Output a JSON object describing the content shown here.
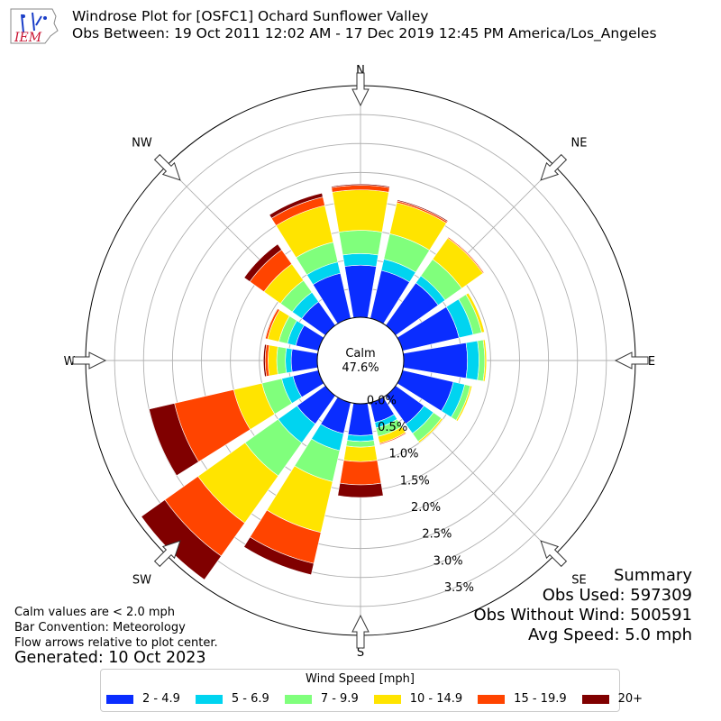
{
  "header": {
    "logo_text": "IEM",
    "title_line1": "Windrose Plot for [OSFC1] Ochard Sunflower Valley",
    "title_line2": "Obs Between: 19 Oct 2011 12:02 AM - 17 Dec 2019 12:45 PM America/Los_Angeles"
  },
  "chart_data": {
    "type": "windrose",
    "directions": [
      "N",
      "NNE",
      "NE",
      "ENE",
      "E",
      "ESE",
      "SE",
      "SSE",
      "S",
      "SSW",
      "SW",
      "WSW",
      "W",
      "WNW",
      "NW",
      "NNW"
    ],
    "direction_labels": [
      "N",
      "NE",
      "E",
      "SE",
      "S",
      "SW",
      "W",
      "NW"
    ],
    "radial_ticks": [
      0.0,
      0.5,
      1.0,
      1.5,
      2.0,
      2.5,
      3.0,
      3.5
    ],
    "radial_tick_labels": [
      "0.0%",
      "0.5%",
      "1.0%",
      "1.5%",
      "2.0%",
      "2.5%",
      "3.0%",
      "3.5%"
    ],
    "rmax": 4.0,
    "calm_label": "Calm",
    "calm_value": "47.6%",
    "bins": [
      "2 - 4.9",
      "5 - 6.9",
      "7 - 9.9",
      "10 - 14.9",
      "15 - 19.9",
      "20+"
    ],
    "colors": [
      "#0a2dff",
      "#00d4f0",
      "#80ff7c",
      "#ffe400",
      "#ff4400",
      "#800000"
    ],
    "series_values_cumulative_percent": [
      [
        0.9,
        1.1,
        1.5,
        2.2,
        2.28,
        2.3
      ],
      [
        0.85,
        1.05,
        1.5,
        2.05,
        2.08,
        2.1
      ],
      [
        0.9,
        1.05,
        1.4,
        1.85,
        1.87,
        1.88
      ],
      [
        1.0,
        1.25,
        1.4,
        1.45,
        1.45,
        1.45
      ],
      [
        1.1,
        1.3,
        1.4,
        1.43,
        1.43,
        1.43
      ],
      [
        0.9,
        1.1,
        1.2,
        1.23,
        1.23,
        1.23
      ],
      [
        0.6,
        0.8,
        0.97,
        1.0,
        1.0,
        1.0
      ],
      [
        0.35,
        0.45,
        0.6,
        0.72,
        0.74,
        0.75
      ],
      [
        0.55,
        0.65,
        0.75,
        1.0,
        1.4,
        1.62
      ],
      [
        0.55,
        0.85,
        1.4,
        2.3,
        2.85,
        3.05
      ],
      [
        0.6,
        1.0,
        1.7,
        2.7,
        3.4,
        3.9
      ],
      [
        0.45,
        0.65,
        1.0,
        1.5,
        2.55,
        3.0
      ],
      [
        0.45,
        0.55,
        0.7,
        0.85,
        0.9,
        0.93
      ],
      [
        0.4,
        0.55,
        0.7,
        0.9,
        0.94,
        0.95
      ],
      [
        0.5,
        0.7,
        0.95,
        1.3,
        1.6,
        1.72
      ],
      [
        0.8,
        1.0,
        1.35,
        2.0,
        2.15,
        2.22
      ]
    ],
    "legend_title": "Wind Speed [mph]"
  },
  "summary": {
    "title": "Summary",
    "obs_used": "Obs Used: 597309",
    "obs_without_wind": "Obs Without Wind: 500591",
    "avg_speed": "Avg Speed: 5.0 mph"
  },
  "notes": {
    "calm_note": "Calm values are < 2.0 mph",
    "bar_convention": "Bar Convention: Meteorology",
    "flow_arrows": "Flow arrows relative to plot center.",
    "generated": "Generated: 10 Oct 2023"
  }
}
